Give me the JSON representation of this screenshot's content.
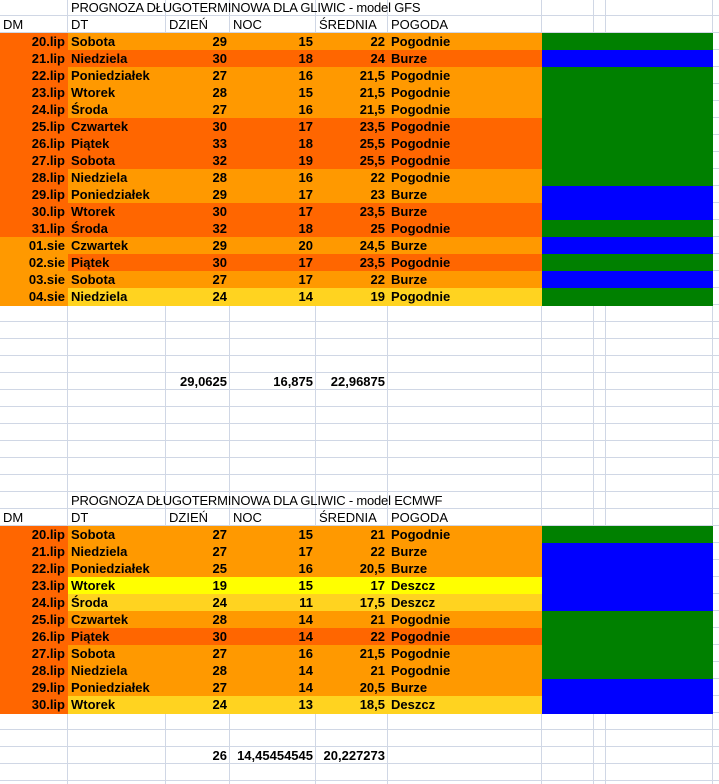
{
  "colors": {
    "light_orange": "#FF9900",
    "dark_orange": "#FF6600",
    "gold": "#FFD320",
    "yellow": "#FFFF00",
    "green": "#008000",
    "blue": "#0000FF"
  },
  "tables": [
    {
      "title": "PROGNOZA DŁUGOTERMINOWA DLA GLIWIC - model GFS",
      "headers": [
        "DM",
        "DT",
        "DZIEŃ",
        "NOC",
        "ŚREDNIA",
        "POGODA"
      ],
      "rows": [
        {
          "dm": "20.lip",
          "dt": "Sobota",
          "day": "29",
          "night": "15",
          "avg": "22",
          "weather": "Pogodnie",
          "dm_color": "dark_orange",
          "row_color": "light_orange",
          "block": "green"
        },
        {
          "dm": "21.lip",
          "dt": "Niedziela",
          "day": "30",
          "night": "18",
          "avg": "24",
          "weather": "Burze",
          "dm_color": "dark_orange",
          "row_color": "dark_orange",
          "block": "blue"
        },
        {
          "dm": "22.lip",
          "dt": "Poniedziałek",
          "day": "27",
          "night": "16",
          "avg": "21,5",
          "weather": "Pogodnie",
          "dm_color": "dark_orange",
          "row_color": "light_orange",
          "block": "green"
        },
        {
          "dm": "23.lip",
          "dt": "Wtorek",
          "day": "28",
          "night": "15",
          "avg": "21,5",
          "weather": "Pogodnie",
          "dm_color": "dark_orange",
          "row_color": "light_orange",
          "block": "green"
        },
        {
          "dm": "24.lip",
          "dt": "Środa",
          "day": "27",
          "night": "16",
          "avg": "21,5",
          "weather": "Pogodnie",
          "dm_color": "dark_orange",
          "row_color": "light_orange",
          "block": "green"
        },
        {
          "dm": "25.lip",
          "dt": "Czwartek",
          "day": "30",
          "night": "17",
          "avg": "23,5",
          "weather": "Pogodnie",
          "dm_color": "dark_orange",
          "row_color": "dark_orange",
          "block": "green"
        },
        {
          "dm": "26.lip",
          "dt": "Piątek",
          "day": "33",
          "night": "18",
          "avg": "25,5",
          "weather": "Pogodnie",
          "dm_color": "dark_orange",
          "row_color": "dark_orange",
          "block": "green"
        },
        {
          "dm": "27.lip",
          "dt": "Sobota",
          "day": "32",
          "night": "19",
          "avg": "25,5",
          "weather": "Pogodnie",
          "dm_color": "dark_orange",
          "row_color": "dark_orange",
          "block": "green"
        },
        {
          "dm": "28.lip",
          "dt": "Niedziela",
          "day": "28",
          "night": "16",
          "avg": "22",
          "weather": "Pogodnie",
          "dm_color": "dark_orange",
          "row_color": "light_orange",
          "block": "green"
        },
        {
          "dm": "29.lip",
          "dt": "Poniedziałek",
          "day": "29",
          "night": "17",
          "avg": "23",
          "weather": "Burze",
          "dm_color": "dark_orange",
          "row_color": "light_orange",
          "block": "blue"
        },
        {
          "dm": "30.lip",
          "dt": "Wtorek",
          "day": "30",
          "night": "17",
          "avg": "23,5",
          "weather": "Burze",
          "dm_color": "dark_orange",
          "row_color": "dark_orange",
          "block": "blue"
        },
        {
          "dm": "31.lip",
          "dt": "Środa",
          "day": "32",
          "night": "18",
          "avg": "25",
          "weather": "Pogodnie",
          "dm_color": "dark_orange",
          "row_color": "dark_orange",
          "block": "green"
        },
        {
          "dm": "01.sie",
          "dt": "Czwartek",
          "day": "29",
          "night": "20",
          "avg": "24,5",
          "weather": "Burze",
          "dm_color": "light_orange",
          "row_color": "light_orange",
          "block": "blue"
        },
        {
          "dm": "02.sie",
          "dt": "Piątek",
          "day": "30",
          "night": "17",
          "avg": "23,5",
          "weather": "Pogodnie",
          "dm_color": "light_orange",
          "row_color": "dark_orange",
          "block": "green"
        },
        {
          "dm": "03.sie",
          "dt": "Sobota",
          "day": "27",
          "night": "17",
          "avg": "22",
          "weather": "Burze",
          "dm_color": "light_orange",
          "row_color": "light_orange",
          "block": "blue"
        },
        {
          "dm": "04.sie",
          "dt": "Niedziela",
          "day": "24",
          "night": "14",
          "avg": "19",
          "weather": "Pogodnie",
          "dm_color": "light_orange",
          "row_color": "gold",
          "block": "green"
        }
      ],
      "averages": {
        "day": "29,0625",
        "night": "16,875",
        "avg": "22,96875"
      }
    },
    {
      "title": "PROGNOZA DŁUGOTERMINOWA DLA GLIWIC - model ECMWF",
      "headers": [
        "DM",
        "DT",
        "DZIEŃ",
        "NOC",
        "ŚREDNIA",
        "POGODA"
      ],
      "rows": [
        {
          "dm": "20.lip",
          "dt": "Sobota",
          "day": "27",
          "night": "15",
          "avg": "21",
          "weather": "Pogodnie",
          "dm_color": "dark_orange",
          "row_color": "light_orange",
          "block": "green"
        },
        {
          "dm": "21.lip",
          "dt": "Niedziela",
          "day": "27",
          "night": "17",
          "avg": "22",
          "weather": "Burze",
          "dm_color": "dark_orange",
          "row_color": "light_orange",
          "block": "blue"
        },
        {
          "dm": "22.lip",
          "dt": "Poniedziałek",
          "day": "25",
          "night": "16",
          "avg": "20,5",
          "weather": "Burze",
          "dm_color": "dark_orange",
          "row_color": "light_orange",
          "block": "blue"
        },
        {
          "dm": "23.lip",
          "dt": "Wtorek",
          "day": "19",
          "night": "15",
          "avg": "17",
          "weather": "Deszcz",
          "dm_color": "dark_orange",
          "row_color": "yellow",
          "block": "blue"
        },
        {
          "dm": "24.lip",
          "dt": "Środa",
          "day": "24",
          "night": "11",
          "avg": "17,5",
          "weather": "Deszcz",
          "dm_color": "dark_orange",
          "row_color": "gold",
          "block": "blue"
        },
        {
          "dm": "25.lip",
          "dt": "Czwartek",
          "day": "28",
          "night": "14",
          "avg": "21",
          "weather": "Pogodnie",
          "dm_color": "dark_orange",
          "row_color": "light_orange",
          "block": "green"
        },
        {
          "dm": "26.lip",
          "dt": "Piątek",
          "day": "30",
          "night": "14",
          "avg": "22",
          "weather": "Pogodnie",
          "dm_color": "dark_orange",
          "row_color": "dark_orange",
          "block": "green"
        },
        {
          "dm": "27.lip",
          "dt": "Sobota",
          "day": "27",
          "night": "16",
          "avg": "21,5",
          "weather": "Pogodnie",
          "dm_color": "dark_orange",
          "row_color": "light_orange",
          "block": "green"
        },
        {
          "dm": "28.lip",
          "dt": "Niedziela",
          "day": "28",
          "night": "14",
          "avg": "21",
          "weather": "Pogodnie",
          "dm_color": "dark_orange",
          "row_color": "light_orange",
          "block": "green"
        },
        {
          "dm": "29.lip",
          "dt": "Poniedziałek",
          "day": "27",
          "night": "14",
          "avg": "20,5",
          "weather": "Burze",
          "dm_color": "dark_orange",
          "row_color": "light_orange",
          "block": "blue"
        },
        {
          "dm": "30.lip",
          "dt": "Wtorek",
          "day": "24",
          "night": "13",
          "avg": "18,5",
          "weather": "Deszcz",
          "dm_color": "dark_orange",
          "row_color": "gold",
          "block": "blue"
        }
      ],
      "averages": {
        "day": "26",
        "night": "14,45454545",
        "avg": "20,227273"
      }
    }
  ]
}
